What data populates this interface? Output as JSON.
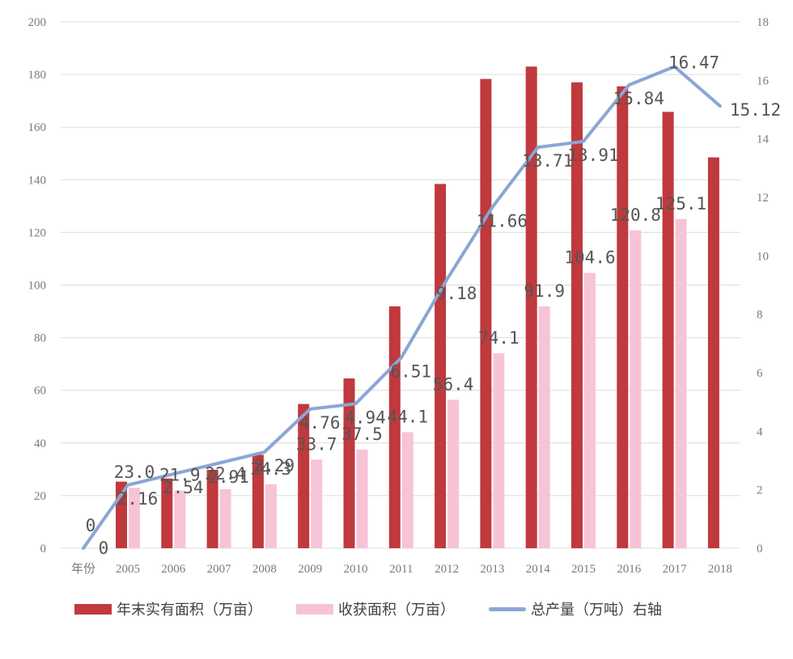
{
  "chart_data": {
    "type": "bar",
    "x_axis_label": "年份",
    "categories": [
      "2005",
      "2006",
      "2007",
      "2008",
      "2009",
      "2010",
      "2011",
      "2012",
      "2013",
      "2014",
      "2015",
      "2016",
      "2017",
      "2018"
    ],
    "left_axis": {
      "ylim": [
        0,
        200
      ],
      "ticks": [
        0,
        20,
        40,
        60,
        80,
        100,
        120,
        140,
        160,
        180,
        200
      ]
    },
    "right_axis": {
      "ylim": [
        0,
        18
      ],
      "ticks": [
        0,
        2,
        4,
        6,
        8,
        10,
        12,
        14,
        16,
        18
      ]
    },
    "grid": true,
    "legend_position": "bottom",
    "series": [
      {
        "name": "年末实有面积（万亩）",
        "type": "bar",
        "axis": "left",
        "color": "#c0393c",
        "values": [
          25.3,
          26.5,
          29.8,
          35.5,
          54.8,
          64.5,
          91.9,
          138.4,
          178.3,
          183.0,
          177.0,
          175.5,
          165.8,
          148.5
        ],
        "labels": [
          "",
          "",
          "",
          "",
          "",
          "",
          "",
          "",
          "",
          "",
          "",
          "",
          "",
          ""
        ]
      },
      {
        "name": "收获面积（万亩）",
        "type": "bar",
        "axis": "left",
        "color": "#f7c3d7",
        "values": [
          23.0,
          21.9,
          22.4,
          24.3,
          33.7,
          37.5,
          44.1,
          56.4,
          74.1,
          91.9,
          104.6,
          120.8,
          125.1,
          0
        ],
        "labels": [
          "23.0",
          "21.9",
          "22.4",
          "24.3",
          "33.7",
          "37.5",
          "44.1",
          "56.4",
          "74.1",
          "91.9",
          "104.6",
          "120.8",
          "125.1",
          ""
        ]
      },
      {
        "name": "总产量（万吨）右轴",
        "type": "line",
        "axis": "right",
        "color": "#8aa6d4",
        "x_start_label": "年份",
        "start_value": 0,
        "values": [
          2.16,
          2.54,
          2.91,
          3.29,
          4.76,
          4.94,
          6.51,
          9.18,
          11.66,
          13.71,
          13.91,
          15.84,
          16.47,
          15.12
        ],
        "labels": [
          "2.16",
          "2.54",
          "2.91",
          "3.29",
          "4.76",
          "4.94",
          "6.51",
          "9.18",
          "11.66",
          "13.71",
          "13.91",
          "15.84",
          "16.47",
          "15.12"
        ],
        "start_labels": [
          "0",
          "0"
        ]
      }
    ]
  }
}
